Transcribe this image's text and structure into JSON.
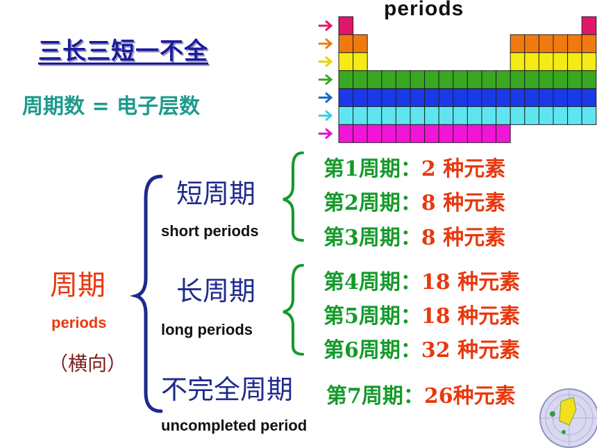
{
  "heading": "三长三短一不全",
  "formula": "周期数 = 电子层数",
  "table_title": "periods",
  "main_label": "周期",
  "main_label_en": "periods",
  "main_label_dir": "（横向）",
  "groups": [
    {
      "label": "短周期",
      "label_en": "short periods"
    },
    {
      "label": "长周期",
      "label_en": "long periods"
    },
    {
      "label": "不完全周期",
      "label_en": "uncompleted period"
    }
  ],
  "periods": [
    {
      "label": "第1周期：",
      "count": "2 种元素"
    },
    {
      "label": "第2周期：",
      "count": "8 种元素"
    },
    {
      "label": "第3周期：",
      "count": "8 种元素"
    },
    {
      "label": "第4周期：",
      "count": "18 种元素"
    },
    {
      "label": "第5周期：",
      "count": "18 种元素"
    },
    {
      "label": "第6周期：",
      "count": "32 种元素"
    },
    {
      "label": "第7周期：",
      "count": "26种元素"
    }
  ],
  "row_colors": [
    "#e0176a",
    "#f07a10",
    "#f4ec14",
    "#38a820",
    "#1a3ae8",
    "#5ee6f0",
    "#f214d8"
  ],
  "arrow_colors": [
    "#e0176a",
    "#f07a10",
    "#e8d20a",
    "#38a820",
    "#1a6ac0",
    "#3ad0e0",
    "#e014c8"
  ],
  "bracket_colors": {
    "main": "#1e2a8c",
    "sub": "#159a2a"
  },
  "icons": [
    "right-arrow-icon",
    "curly-brace-icon",
    "globe-icon"
  ]
}
